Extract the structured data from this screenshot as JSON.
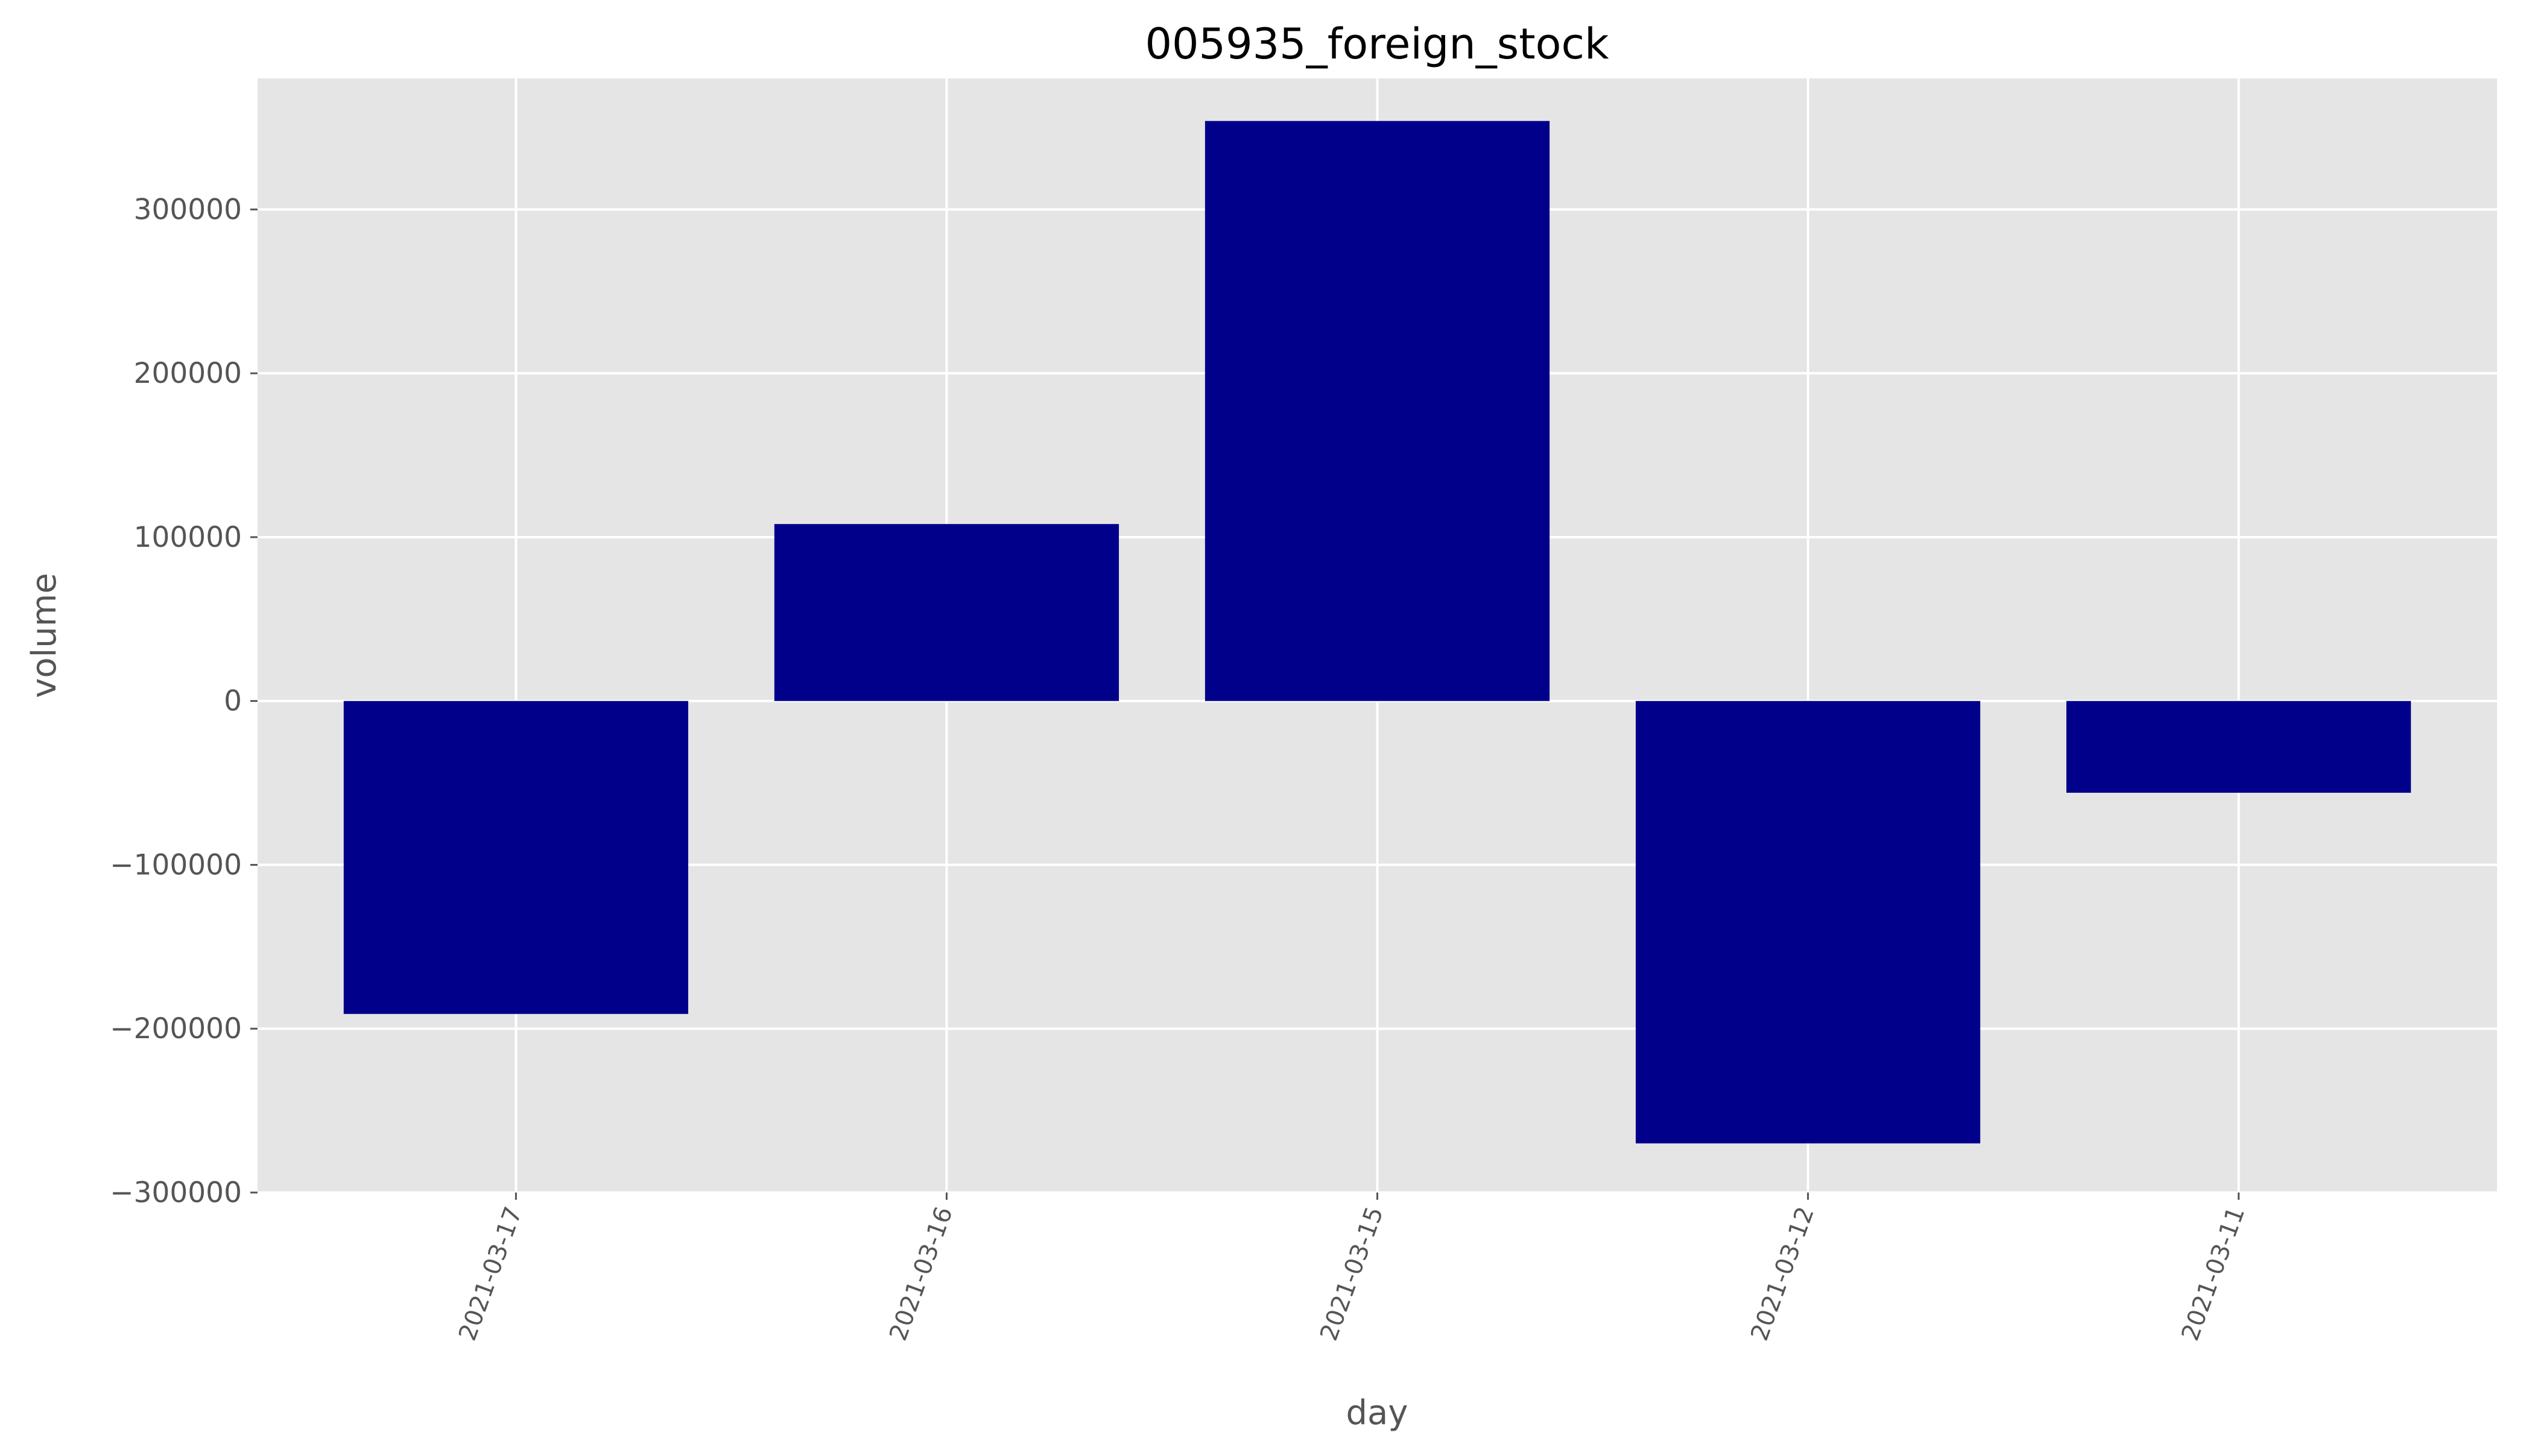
{
  "chart_data": {
    "type": "bar",
    "title": "005935_foreign_stock",
    "xlabel": "day",
    "ylabel": "volume",
    "categories": [
      "2021-03-17",
      "2021-03-16",
      "2021-03-15",
      "2021-03-12",
      "2021-03-11"
    ],
    "values": [
      -191000,
      108000,
      354000,
      -270000,
      -56000
    ],
    "ylim": [
      -300000,
      380000
    ],
    "yticks": [
      -300000,
      -200000,
      -100000,
      0,
      100000,
      200000,
      300000
    ],
    "ytick_labels": [
      "−300000",
      "−200000",
      "−100000",
      "0",
      "100000",
      "200000",
      "300000"
    ],
    "xtick_rotation_deg": 70,
    "grid": true,
    "style": "ggplot",
    "colors": {
      "bar": "#00008b",
      "plot_background": "#e5e5e5",
      "grid": "#ffffff",
      "text": "#555555"
    }
  }
}
